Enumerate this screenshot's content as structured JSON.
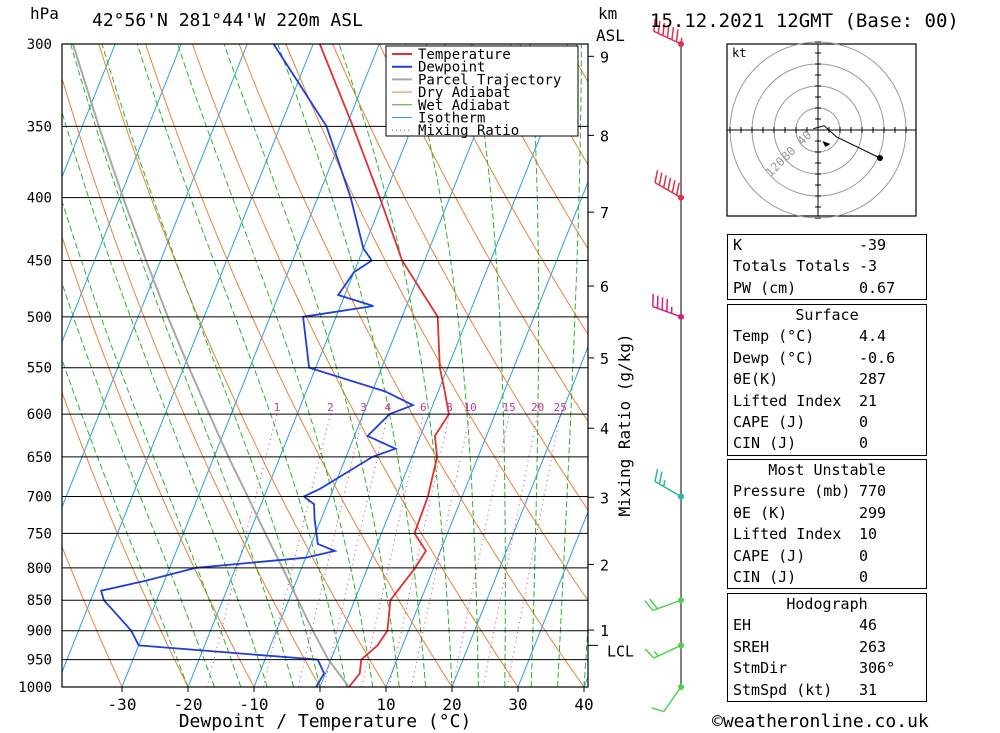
{
  "header": {
    "pressure_unit": "hPa",
    "location": "42°56'N  281°44'W  220m  ASL",
    "km_label": "km",
    "asl_label": "ASL",
    "datetime": "15.12.2021  12GMT  (Base: 00)"
  },
  "chart_data": {
    "type": "line",
    "subtype": "skew-T log-P diagram",
    "xlabel": "Dewpoint / Temperature (°C)",
    "ylabel": "hPa",
    "right_axis_label": "km ASL",
    "mixing_ratio_axis_label": "Mixing Ratio (g/kg)",
    "x_ticks": [
      -30,
      -20,
      -10,
      0,
      10,
      20,
      30,
      40
    ],
    "pressure_levels": [
      300,
      350,
      400,
      450,
      500,
      550,
      600,
      650,
      700,
      750,
      800,
      850,
      900,
      950,
      1000
    ],
    "height_ticks_km": [
      1,
      2,
      3,
      4,
      5,
      6,
      7,
      8,
      9
    ],
    "lcl_label": "LCL",
    "mixing_ratio_labels": [
      "1",
      "2",
      "3",
      "4",
      "6",
      "8",
      "10",
      "15",
      "20",
      "25"
    ],
    "legend": [
      "Temperature",
      "Dewpoint",
      "Parcel Trajectory",
      "Dry Adiabat",
      "Wet Adiabat",
      "Isotherm",
      "Mixing Ratio"
    ],
    "colors": {
      "temperature": "#e03030",
      "dewpoint": "#1f3fd8",
      "parcel": "#a8a8a8",
      "dry_adiabat": "#e8823a",
      "wet_adiabat": "#2ab42a",
      "isotherm": "#2a9fe0",
      "mixing_ratio": "#d0308c"
    },
    "series": [
      {
        "name": "Temperature",
        "points": [
          [
            1000,
            4.4
          ],
          [
            975,
            5.2
          ],
          [
            950,
            4.6
          ],
          [
            925,
            6.2
          ],
          [
            900,
            6.8
          ],
          [
            850,
            5.4
          ],
          [
            800,
            7.2
          ],
          [
            775,
            7.8
          ],
          [
            750,
            5.0
          ],
          [
            700,
            4.8
          ],
          [
            650,
            3.8
          ],
          [
            625,
            2.2
          ],
          [
            600,
            3.0
          ],
          [
            575,
            1.0
          ],
          [
            550,
            -1.2
          ],
          [
            500,
            -4.6
          ],
          [
            450,
            -13.4
          ],
          [
            400,
            -20.6
          ],
          [
            350,
            -29.0
          ],
          [
            300,
            -39.0
          ]
        ]
      },
      {
        "name": "Dewpoint",
        "points": [
          [
            1000,
            -0.6
          ],
          [
            975,
            -0.2
          ],
          [
            950,
            -2.0
          ],
          [
            925,
            -30.0
          ],
          [
            900,
            -32.0
          ],
          [
            850,
            -38.0
          ],
          [
            835,
            -39.0
          ],
          [
            820,
            -33.0
          ],
          [
            800,
            -26.0
          ],
          [
            785,
            -10.0
          ],
          [
            775,
            -6.0
          ],
          [
            765,
            -9.0
          ],
          [
            730,
            -11.0
          ],
          [
            710,
            -12.0
          ],
          [
            700,
            -14.0
          ],
          [
            690,
            -12.0
          ],
          [
            650,
            -6.0
          ],
          [
            640,
            -3.0
          ],
          [
            625,
            -8.0
          ],
          [
            600,
            -6.0
          ],
          [
            590,
            -3.0
          ],
          [
            575,
            -8.0
          ],
          [
            550,
            -21.0
          ],
          [
            500,
            -25.0
          ],
          [
            490,
            -15.0
          ],
          [
            480,
            -21.0
          ],
          [
            460,
            -20.0
          ],
          [
            450,
            -18.0
          ],
          [
            440,
            -20.0
          ],
          [
            400,
            -25.0
          ],
          [
            350,
            -33.0
          ],
          [
            300,
            -46.0
          ]
        ]
      },
      {
        "name": "Parcel Trajectory",
        "points": [
          [
            1000,
            4.4
          ],
          [
            950,
            -0.4
          ],
          [
            900,
            -4.5
          ],
          [
            850,
            -8.6
          ],
          [
            800,
            -12.9
          ],
          [
            750,
            -17.6
          ],
          [
            700,
            -22.5
          ],
          [
            650,
            -27.8
          ],
          [
            600,
            -33.3
          ],
          [
            550,
            -39.2
          ],
          [
            500,
            -45.5
          ],
          [
            450,
            -52.2
          ],
          [
            400,
            -59.5
          ],
          [
            350,
            -67.5
          ],
          [
            300,
            -76.4
          ]
        ]
      }
    ],
    "wind_barbs": [
      {
        "pressure": 300,
        "direction_deg": 295,
        "speed_kt": 65
      },
      {
        "pressure": 400,
        "direction_deg": 300,
        "speed_kt": 60
      },
      {
        "pressure": 500,
        "direction_deg": 290,
        "speed_kt": 45
      },
      {
        "pressure": 700,
        "direction_deg": 300,
        "speed_kt": 25
      },
      {
        "pressure": 850,
        "direction_deg": 250,
        "speed_kt": 20
      },
      {
        "pressure": 925,
        "direction_deg": 245,
        "speed_kt": 15
      },
      {
        "pressure": 1000,
        "direction_deg": 215,
        "speed_kt": 10
      }
    ],
    "hodograph": {
      "unit_label": "kt",
      "ring_labels": [
        "40",
        "80",
        "120"
      ],
      "points": [
        [
          -3,
          1
        ],
        [
          4,
          3
        ],
        [
          12,
          -5
        ],
        [
          40,
          -20
        ]
      ],
      "storm_motion": [
        8,
        -10
      ]
    }
  },
  "indices": {
    "k_label": "K",
    "k_value": "-39",
    "tt_label": "Totals Totals",
    "tt_value": "-3",
    "pw_label": "PW (cm)",
    "pw_value": "0.67"
  },
  "surface": {
    "title": "Surface",
    "rows": [
      {
        "label": "Temp (°C)",
        "value": "4.4"
      },
      {
        "label": "Dewp (°C)",
        "value": "-0.6"
      },
      {
        "label": "θE(K)",
        "value": "287"
      },
      {
        "label": "Lifted Index",
        "value": "21"
      },
      {
        "label": "CAPE (J)",
        "value": "0"
      },
      {
        "label": "CIN (J)",
        "value": "0"
      }
    ]
  },
  "most_unstable": {
    "title": "Most Unstable",
    "rows": [
      {
        "label": "Pressure (mb)",
        "value": "770"
      },
      {
        "label": "θE (K)",
        "value": "299"
      },
      {
        "label": "Lifted Index",
        "value": "10"
      },
      {
        "label": "CAPE (J)",
        "value": "0"
      },
      {
        "label": "CIN (J)",
        "value": "0"
      }
    ]
  },
  "hodograph_box": {
    "title": "Hodograph",
    "rows": [
      {
        "label": "EH",
        "value": "46"
      },
      {
        "label": "SREH",
        "value": "263"
      },
      {
        "label": "StmDir",
        "value": "306°"
      },
      {
        "label": "StmSpd (kt)",
        "value": "31"
      }
    ]
  },
  "footer": {
    "copyright": "©weatheronline.co.uk"
  }
}
